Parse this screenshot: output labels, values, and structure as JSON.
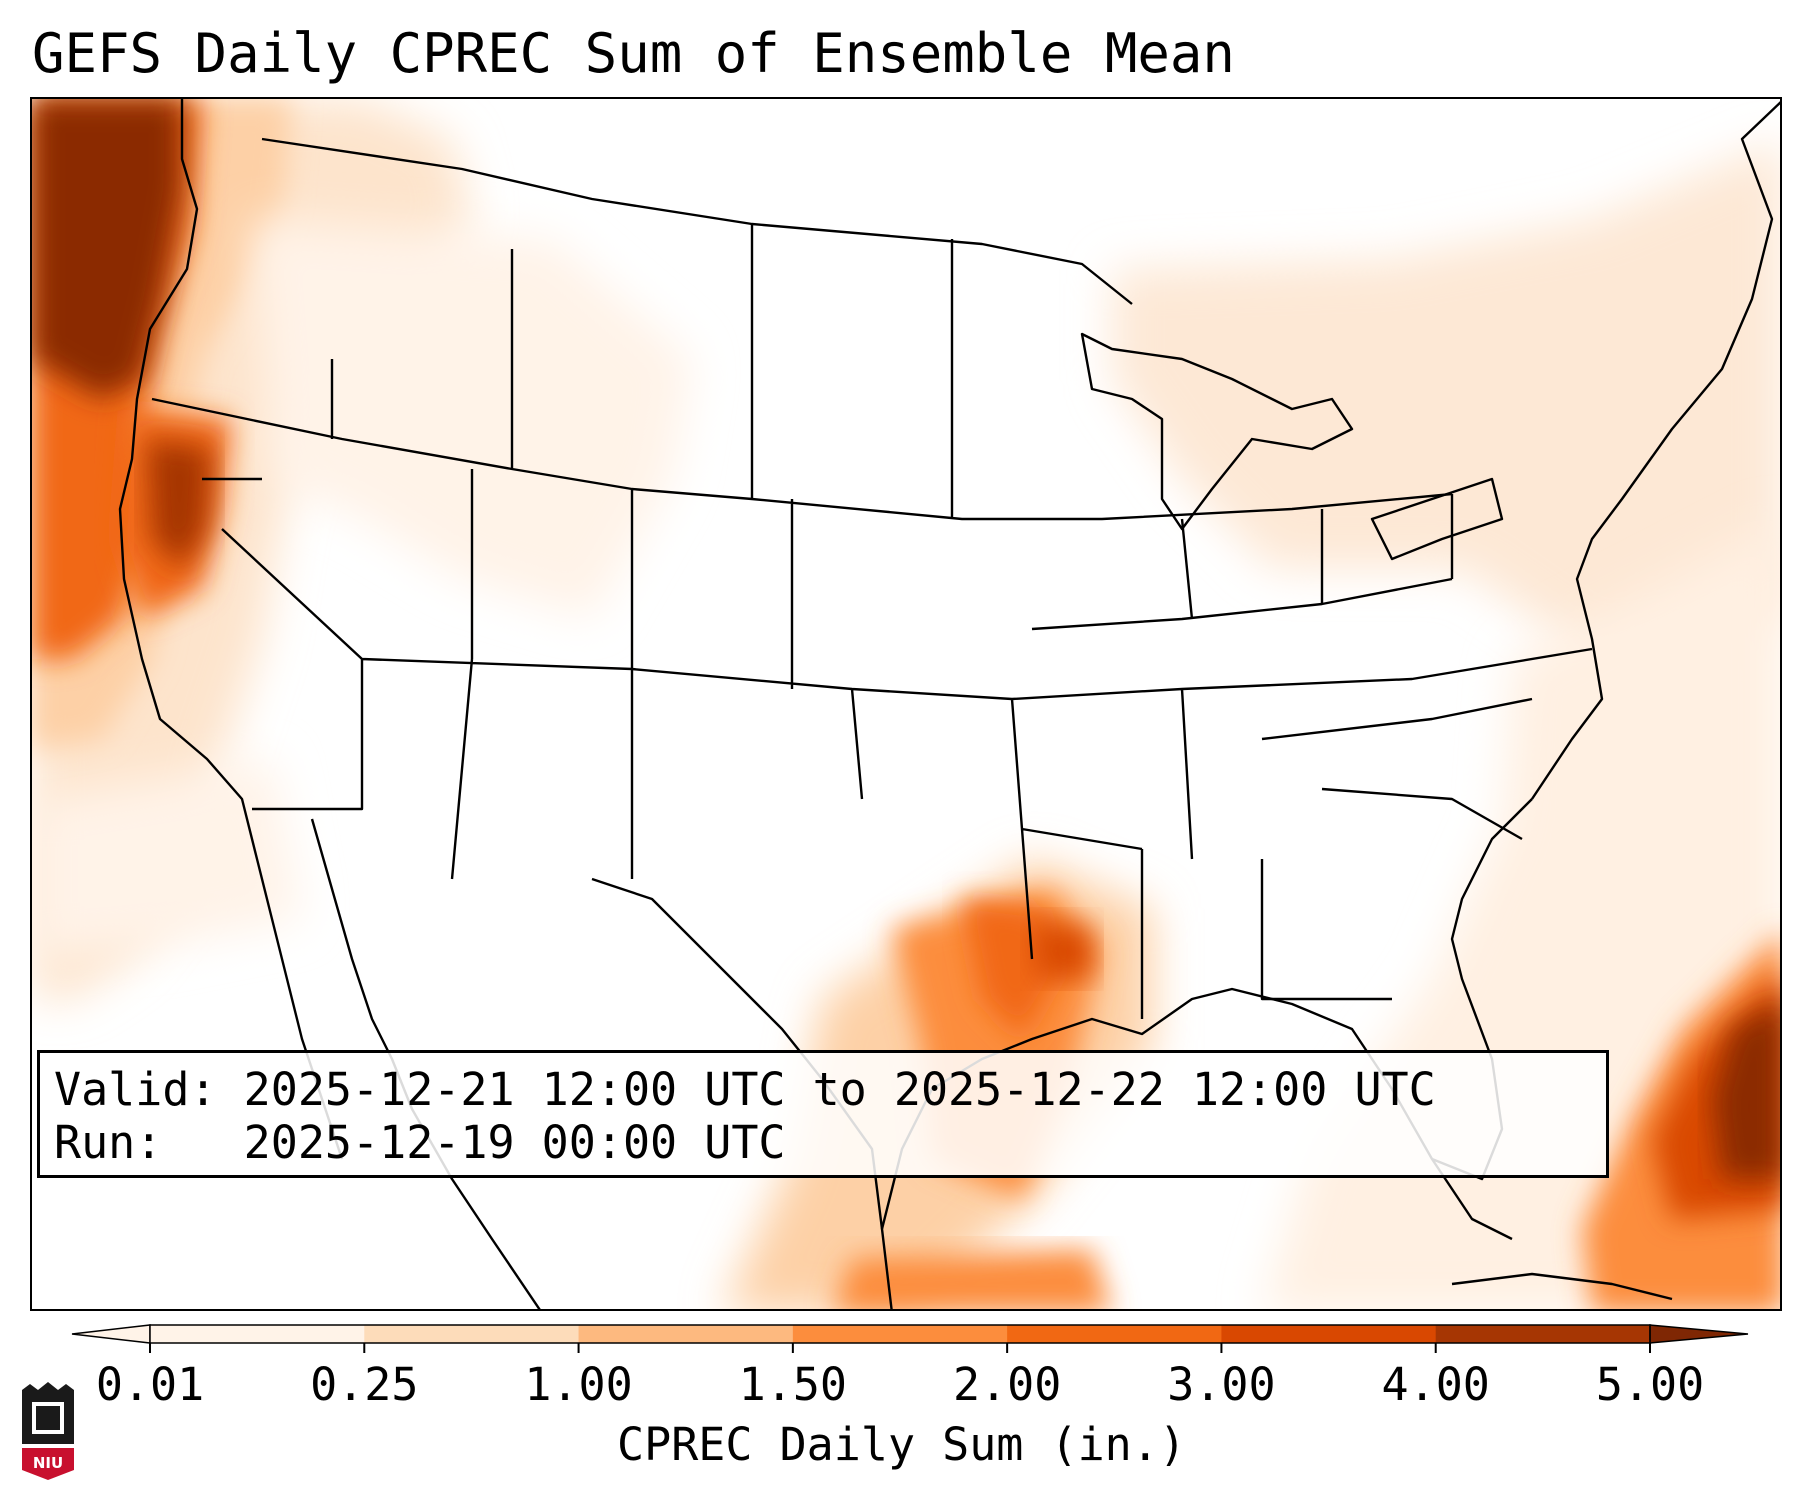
{
  "title": "GEFS Daily CPREC Sum of Ensemble Mean",
  "info": {
    "valid_label": "Valid:",
    "valid_value": "2025-12-21 12:00 UTC to 2025-12-22 12:00 UTC",
    "run_label": "Run:",
    "run_value": "2025-12-19 00:00 UTC"
  },
  "colorbar": {
    "label": "CPREC Daily Sum (in.)",
    "ticks": [
      "0.01",
      "0.25",
      "1.00",
      "1.50",
      "2.00",
      "3.00",
      "4.00",
      "5.00"
    ],
    "colors": [
      "#fff3e8",
      "#fddcba",
      "#fdb97f",
      "#fc8d3d",
      "#f16813",
      "#d94801",
      "#a63603"
    ],
    "extend": "both"
  },
  "logo": {
    "text": "NIU",
    "bg_color": "#c8102e"
  },
  "map": {
    "region": "Contiguous United States",
    "projection": "Lambert Conformal",
    "features": [
      "states",
      "coastlines",
      "borders"
    ]
  }
}
